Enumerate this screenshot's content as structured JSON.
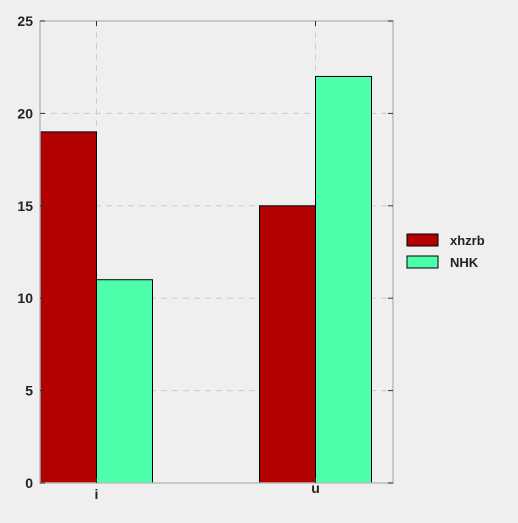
{
  "chart_data": {
    "type": "bar",
    "categories": [
      "i",
      "u"
    ],
    "series": [
      {
        "name": "xhzrb",
        "values": [
          19,
          15
        ],
        "color": "#b30000"
      },
      {
        "name": "NHK",
        "values": [
          11,
          22
        ],
        "color": "#4dffaa"
      }
    ],
    "title": "",
    "xlabel": "",
    "ylabel": "",
    "ylim": [
      0,
      25
    ],
    "yticks": [
      0,
      5,
      10,
      15,
      20,
      25
    ],
    "grid": true,
    "legend_position": "right"
  },
  "colors": {
    "background": "#efefef",
    "axes_frame": "#bbbbbb",
    "grid": "#cccccc",
    "bar_edge": "#000000"
  }
}
